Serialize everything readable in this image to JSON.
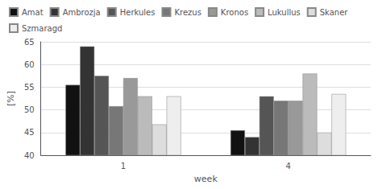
{
  "chart_data": {
    "type": "bar",
    "xlabel": "week",
    "ylabel": "[%]",
    "categories": [
      "1",
      "4"
    ],
    "series": [
      {
        "name": "Amat",
        "color": "#111111",
        "values": [
          55.5,
          45.5
        ]
      },
      {
        "name": "Ambrozja",
        "color": "#333333",
        "values": [
          64.0,
          44.0
        ]
      },
      {
        "name": "Herkules",
        "color": "#555555",
        "values": [
          57.5,
          53.0
        ]
      },
      {
        "name": "Krezus",
        "color": "#777777",
        "values": [
          50.8,
          52.0
        ]
      },
      {
        "name": "Kronos",
        "color": "#999999",
        "values": [
          57.0,
          52.0
        ]
      },
      {
        "name": "Lukullus",
        "color": "#bbbbbb",
        "values": [
          53.0,
          58.0
        ]
      },
      {
        "name": "Skaner",
        "color": "#dddddd",
        "values": [
          46.8,
          45.0
        ]
      },
      {
        "name": "Szmaragd",
        "color": "#eeeeee",
        "values": [
          53.0,
          53.5
        ]
      }
    ],
    "ylim": [
      40,
      65
    ],
    "yticks": [
      40,
      45,
      50,
      55,
      60,
      65
    ],
    "grid": true,
    "legend": "top-left"
  }
}
